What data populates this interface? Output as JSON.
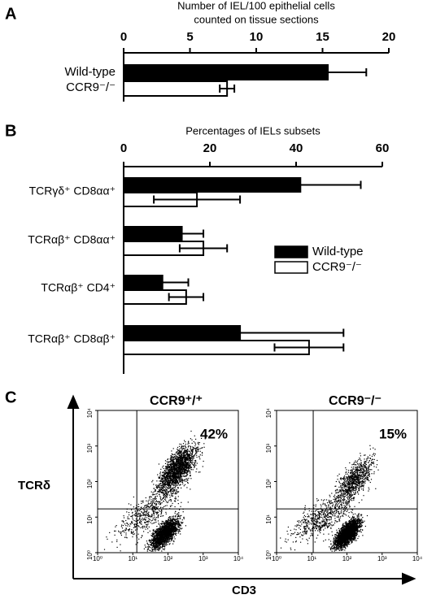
{
  "chart_data": [
    {
      "type": "hbar",
      "panel": "A",
      "title": [
        "Number of IEL/100 epithelial cells",
        "counted on tissue sections"
      ],
      "categories": [
        "Wild-type",
        "CCR9⁻/⁻"
      ],
      "series": [
        {
          "name": "Wild-type",
          "color": "#000000",
          "values": [
            15.4,
            null
          ],
          "errors": [
            2.9,
            null
          ]
        },
        {
          "name": "CCR9⁻/⁻",
          "color": "#ffffff",
          "values": [
            null,
            7.8
          ],
          "errors": [
            null,
            0.55
          ]
        }
      ],
      "xlim": [
        0,
        20
      ],
      "xticks": [
        0,
        5,
        10,
        15,
        20
      ]
    },
    {
      "type": "hbar",
      "panel": "B",
      "title": [
        "Percentages of IELs subsets"
      ],
      "categories": [
        "TCRγδ⁺ CD8αα⁺",
        "TCRαβ⁺ CD8αα⁺",
        "TCRαβ⁺ CD4⁺",
        "TCRαβ⁺ CD8αβ⁺"
      ],
      "series": [
        {
          "name": "Wild-type",
          "color": "#000000",
          "values": [
            41,
            13.5,
            9,
            27
          ],
          "errors": [
            14,
            5,
            6,
            24
          ]
        },
        {
          "name": "CCR9⁻/⁻",
          "color": "#ffffff",
          "values": [
            17,
            18.5,
            14.5,
            43
          ],
          "errors": [
            10,
            5.5,
            4,
            8
          ]
        }
      ],
      "xlim": [
        0,
        60
      ],
      "xticks": [
        0,
        20,
        40,
        60
      ],
      "legend": "right"
    },
    {
      "type": "flow",
      "panel": "C",
      "title": "CCR9⁺/⁺",
      "annotation": "42%",
      "ylabel": "TCRδ",
      "xlabel": "CD3",
      "xscale": "log",
      "yscale": "log",
      "xlim": [
        1,
        10000
      ],
      "ylim": [
        1,
        10000
      ],
      "xticks": [
        {
          "value": 1,
          "label": "10⁰"
        },
        {
          "value": 10,
          "label": "10¹"
        },
        {
          "value": 100,
          "label": "10²"
        },
        {
          "value": 1000,
          "label": "10³"
        },
        {
          "value": 10000,
          "label": "10⁴"
        }
      ],
      "yticks": [
        {
          "value": 1,
          "label": "10⁰"
        },
        {
          "value": 10,
          "label": "10¹"
        },
        {
          "value": 100,
          "label": "10²"
        },
        {
          "value": 1000,
          "label": "10³"
        },
        {
          "value": 10000,
          "label": "10⁴"
        }
      ],
      "gates": {
        "x": 13,
        "y": 17
      }
    },
    {
      "type": "flow",
      "title": "CCR9⁻/⁻",
      "annotation": "15%",
      "xscale": "log",
      "yscale": "log",
      "xlim": [
        1,
        10000
      ],
      "ylim": [
        1,
        10000
      ],
      "xticks": [
        {
          "value": 1,
          "label": "10⁰"
        },
        {
          "value": 10,
          "label": "10¹"
        },
        {
          "value": 100,
          "label": "10²"
        },
        {
          "value": 1000,
          "label": "10³"
        },
        {
          "value": 10000,
          "label": "10⁴"
        }
      ],
      "yticks": [
        {
          "value": 1,
          "label": "10⁰"
        },
        {
          "value": 10,
          "label": "10¹"
        },
        {
          "value": 100,
          "label": "10²"
        },
        {
          "value": 1000,
          "label": "10³"
        },
        {
          "value": 10000,
          "label": "10⁴"
        }
      ],
      "gates": {
        "x": 11,
        "y": 17
      }
    }
  ]
}
